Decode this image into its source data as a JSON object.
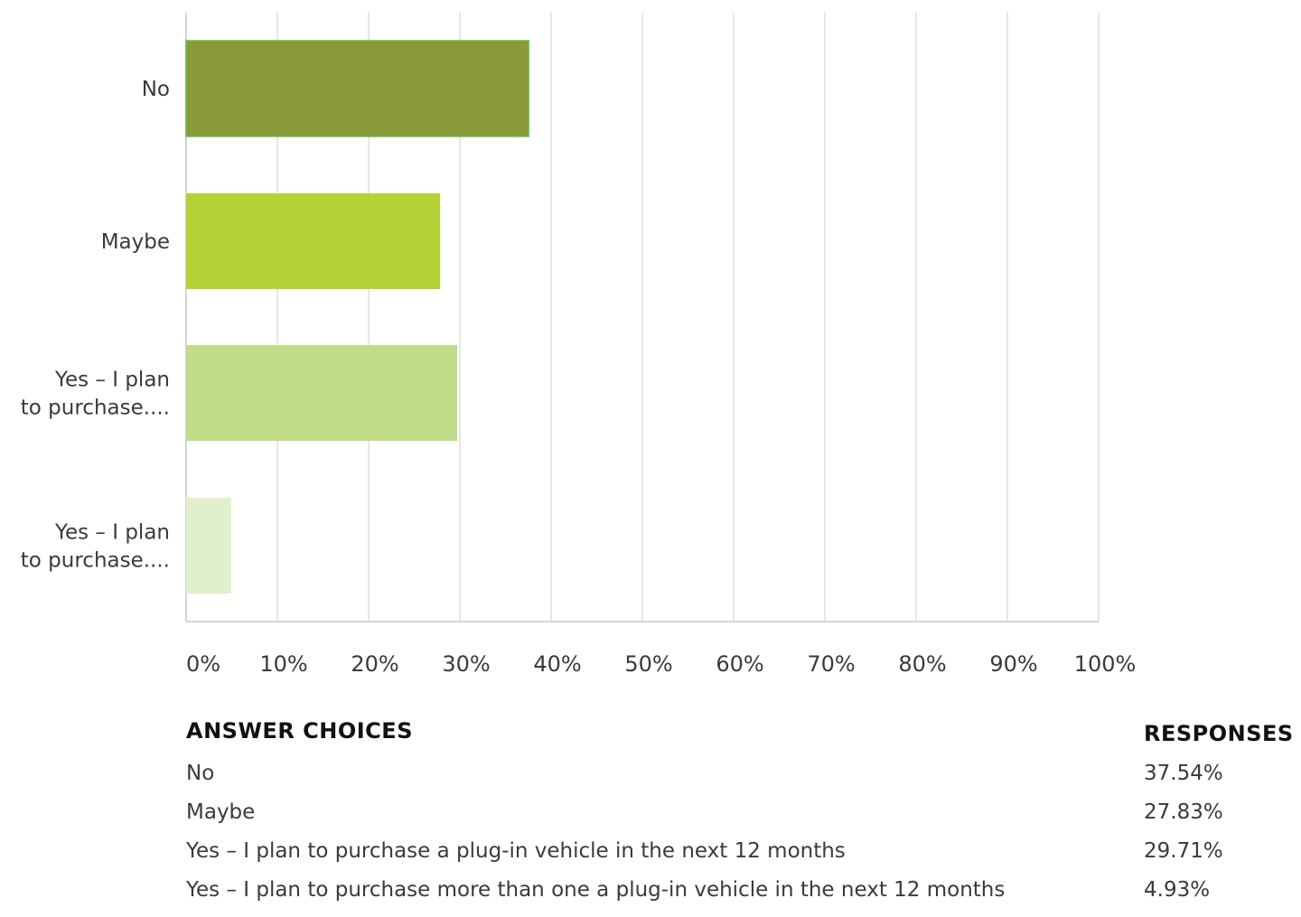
{
  "chart_data": {
    "type": "bar",
    "orientation": "horizontal",
    "categories": [
      [
        "No"
      ],
      [
        "Maybe"
      ],
      [
        "Yes – I plan",
        "to purchase...."
      ],
      [
        "Yes – I plan",
        "to purchase...."
      ]
    ],
    "values": [
      37.54,
      27.83,
      29.71,
      4.93
    ],
    "colors": [
      "#8a9a38",
      "#b2d235",
      "#c0dc88",
      "#e2efcd"
    ],
    "xlim": [
      0,
      100
    ],
    "x_ticks": [
      "0%",
      "10%",
      "20%",
      "30%",
      "40%",
      "50%",
      "60%",
      "70%",
      "80%",
      "90%",
      "100%"
    ],
    "grid": true,
    "title": "",
    "xlabel": "",
    "ylabel": ""
  },
  "table": {
    "header_choice": "ANSWER CHOICES",
    "header_responses": "RESPONSES",
    "rows": [
      {
        "choice": "No",
        "response": "37.54%"
      },
      {
        "choice": "Maybe",
        "response": "27.83%"
      },
      {
        "choice": "Yes – I plan to purchase a plug-in vehicle in the next 12 months",
        "response": "29.71%"
      },
      {
        "choice": "Yes – I plan to purchase more than one a plug-in vehicle in the next 12 months",
        "response": "4.93%"
      }
    ]
  }
}
